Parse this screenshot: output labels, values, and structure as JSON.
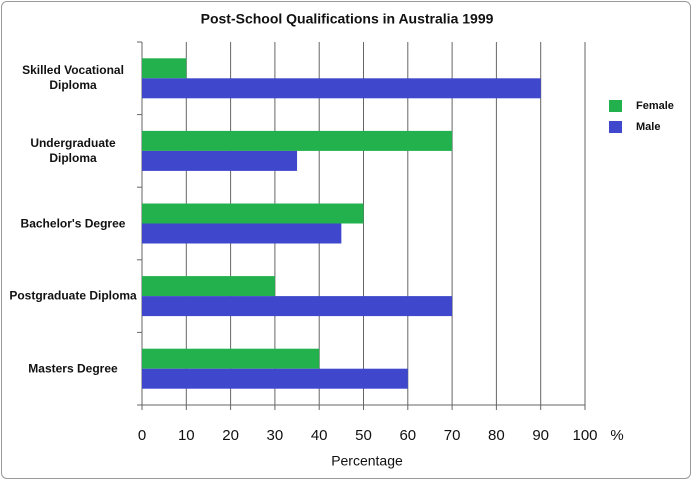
{
  "chart_data": {
    "type": "hbar",
    "title": "Post-School Qualifications in Australia 1999",
    "categories": [
      "Skilled Vocational Diploma",
      "Undergraduate Diploma",
      "Bachelor's Degree",
      "Postgraduate Diploma",
      "Masters Degree"
    ],
    "series": [
      {
        "name": "Female",
        "color": "#22b14c",
        "values": [
          10,
          70,
          50,
          30,
          40
        ]
      },
      {
        "name": "Male",
        "color": "#3f48cc",
        "values": [
          90,
          35,
          45,
          70,
          60
        ]
      }
    ],
    "xlim": [
      0,
      100
    ],
    "xticks": [
      0,
      10,
      20,
      30,
      40,
      50,
      60,
      70,
      80,
      90,
      100
    ],
    "x_unit": "%",
    "xlabel": "Percentage",
    "grid": true,
    "legend": "right"
  }
}
